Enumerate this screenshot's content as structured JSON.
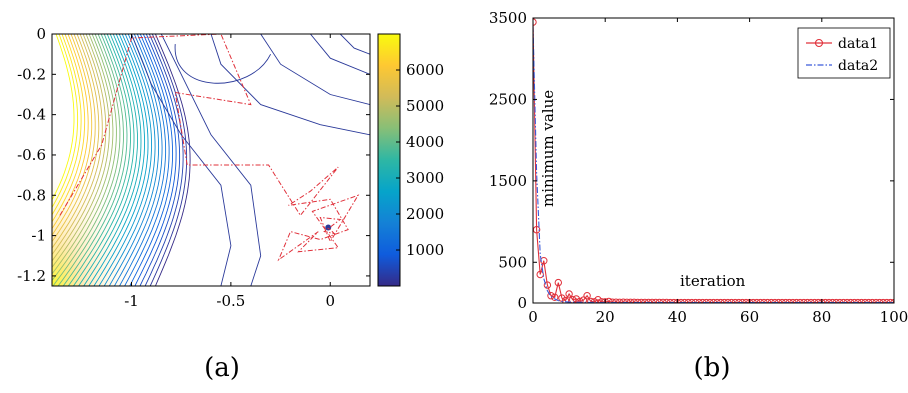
{
  "chart_data": [
    {
      "type": "contour",
      "caption": "(a)",
      "xlim": [
        -1.4,
        0.2
      ],
      "ylim": [
        -1.25,
        0
      ],
      "x_ticks": [
        -1,
        -0.5,
        0
      ],
      "x_tick_labels": [
        "-1",
        "-0.5",
        "0"
      ],
      "y_ticks": [
        0,
        -0.2,
        -0.4,
        -0.6,
        -0.8,
        -1,
        -1.2
      ],
      "y_tick_labels": [
        "0",
        "-0.2",
        "-0.4",
        "-0.6",
        "-0.8",
        "-1",
        "-1.2"
      ],
      "colorbar": {
        "range": [
          0,
          7000
        ],
        "ticks": [
          1000,
          2000,
          3000,
          4000,
          5000,
          6000
        ],
        "tick_labels": [
          "1000",
          "2000",
          "3000",
          "4000",
          "5000",
          "6000"
        ],
        "colormap": "parula",
        "colors": [
          "#352a87",
          "#0f5cdd",
          "#1481d6",
          "#06a4ca",
          "#2eb7a4",
          "#87bf77",
          "#d1bb59",
          "#fec832",
          "#f9fb0e"
        ]
      },
      "minimum_point": [
        -0.01,
        -0.96
      ],
      "search_path": [
        [
          -1.36,
          -0.9
        ],
        [
          -1.15,
          -0.55
        ],
        [
          -1.0,
          -0.02
        ],
        [
          -0.55,
          0.0
        ],
        [
          -0.4,
          -0.35
        ],
        [
          -0.78,
          -0.29
        ],
        [
          -0.72,
          -0.65
        ],
        [
          -0.31,
          -0.65
        ],
        [
          -0.15,
          -0.9
        ],
        [
          0.04,
          -0.66
        ],
        [
          -0.1,
          -0.78
        ],
        [
          -0.21,
          -0.85
        ],
        [
          0.0,
          -0.82
        ],
        [
          0.09,
          -0.97
        ],
        [
          -0.05,
          -1.02
        ],
        [
          -0.2,
          -0.98
        ],
        [
          -0.26,
          -1.12
        ],
        [
          -0.06,
          -0.98
        ],
        [
          -0.16,
          -1.08
        ],
        [
          0.04,
          -1.06
        ],
        [
          -0.09,
          -0.88
        ],
        [
          0.14,
          -0.8
        ],
        [
          0.0,
          -1.03
        ],
        [
          -0.05,
          -0.91
        ],
        [
          0.05,
          -0.92
        ],
        [
          -0.03,
          -0.98
        ],
        [
          0.02,
          -0.99
        ],
        [
          -0.01,
          -0.96
        ]
      ],
      "path_color": "#e0303a",
      "contour_color": "#2b3a9a"
    },
    {
      "type": "line",
      "caption": "(b)",
      "xlim": [
        0,
        100
      ],
      "ylim": [
        0,
        3500
      ],
      "x_ticks": [
        0,
        20,
        40,
        60,
        80,
        100
      ],
      "x_tick_labels": [
        "0",
        "20",
        "40",
        "60",
        "80",
        "100"
      ],
      "y_ticks": [
        0,
        500,
        1500,
        2500,
        3500
      ],
      "y_tick_labels": [
        "0",
        "500",
        "1500",
        "2500",
        "3500"
      ],
      "annotations": {
        "vertical": "minimum value",
        "horizontal": "iteration"
      },
      "legend_position": "top-right",
      "series": [
        {
          "name": "data1",
          "color": "#e0303a",
          "marker": "circle",
          "x": [
            0,
            1,
            2,
            3,
            4,
            5,
            6,
            7,
            8,
            9,
            10,
            11,
            12,
            13,
            14,
            15,
            16,
            17,
            18,
            19,
            20,
            21,
            22,
            23,
            24,
            25,
            26,
            27,
            28,
            29,
            30,
            31,
            32,
            33,
            34,
            35,
            36,
            37,
            38,
            39,
            40,
            41,
            42,
            43,
            44,
            45,
            46,
            47,
            48,
            49,
            50,
            51,
            52,
            53,
            54,
            55,
            56,
            57,
            58,
            59,
            60,
            61,
            62,
            63,
            64,
            65,
            66,
            67,
            68,
            69,
            70,
            71,
            72,
            73,
            74,
            75,
            76,
            77,
            78,
            79,
            80,
            81,
            82,
            83,
            84,
            85,
            86,
            87,
            88,
            89,
            90,
            91,
            92,
            93,
            94,
            95,
            96,
            97,
            98,
            99,
            100
          ],
          "values": [
            3450,
            900,
            350,
            520,
            220,
            90,
            70,
            250,
            60,
            30,
            110,
            40,
            50,
            20,
            35,
            90,
            20,
            15,
            40,
            15,
            15,
            20,
            10,
            10,
            8,
            10,
            8,
            8,
            8,
            7,
            7,
            7,
            7,
            6,
            6,
            6,
            6,
            6,
            5,
            5,
            5,
            5,
            5,
            5,
            5,
            5,
            5,
            5,
            5,
            5,
            5,
            5,
            5,
            5,
            5,
            5,
            5,
            5,
            5,
            5,
            5,
            5,
            5,
            5,
            5,
            5,
            5,
            5,
            5,
            5,
            5,
            5,
            5,
            5,
            5,
            5,
            5,
            5,
            5,
            5,
            5,
            5,
            5,
            5,
            5,
            5,
            5,
            5,
            5,
            5,
            5,
            5,
            5,
            5,
            5,
            5,
            5,
            5,
            5,
            5,
            5
          ]
        },
        {
          "name": "data2",
          "color": "#3a5bd9",
          "marker": "none",
          "x": [
            0,
            1,
            2,
            3,
            4,
            5,
            6,
            7,
            8,
            10,
            12,
            15,
            20,
            30,
            40,
            60,
            80,
            100
          ],
          "values": [
            3400,
            1600,
            600,
            300,
            150,
            80,
            50,
            30,
            20,
            12,
            9,
            7,
            5,
            5,
            5,
            5,
            5,
            5
          ]
        }
      ]
    }
  ]
}
